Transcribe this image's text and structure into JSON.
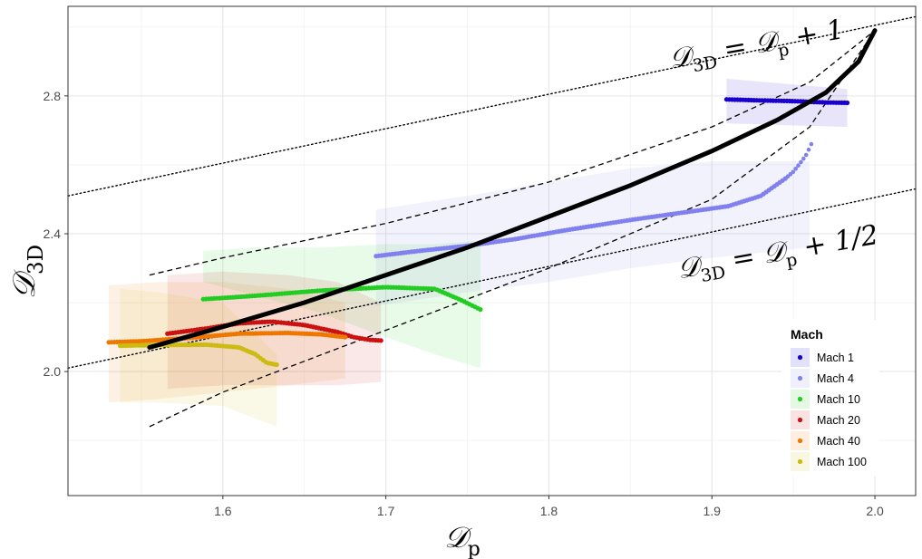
{
  "chart_data": {
    "type": "line",
    "xlabel": "𝒟",
    "xlabel_sub": "p",
    "ylabel": "𝒟",
    "ylabel_sub": "3D",
    "xlim": [
      1.505,
      2.025
    ],
    "ylim": [
      1.64,
      3.06
    ],
    "x_ticks": [
      1.6,
      1.7,
      1.8,
      1.9,
      2.0
    ],
    "x_tick_labels": [
      "1.6",
      "1.7",
      "1.8",
      "1.9",
      "2.0"
    ],
    "y_ticks": [
      2.0,
      2.4,
      2.8
    ],
    "y_tick_labels": [
      "2.0",
      "2.4",
      "2.8"
    ],
    "grid": true,
    "legend": {
      "title": "Mach",
      "position": "bottom-right",
      "entries": [
        "Mach 1",
        "Mach 4",
        "Mach 10",
        "Mach 20",
        "Mach 40",
        "Mach 100"
      ]
    },
    "annotations": [
      {
        "main": "𝒟",
        "sub1": "3D",
        "mid": " = 𝒟",
        "sub2": "p",
        "tail": " + 1",
        "x": 1.875,
        "y": 2.88,
        "angle": -10
      },
      {
        "main": "𝒟",
        "sub1": "3D",
        "mid": " = 𝒟",
        "sub2": "p",
        "tail": " + 1/2",
        "x": 1.88,
        "y": 2.27,
        "angle": -10
      }
    ],
    "reference_lines": [
      {
        "name": "dotted-line-plus-one",
        "style": "dotted",
        "x": [
          1.505,
          2.025
        ],
        "y": [
          2.51,
          3.03
        ]
      },
      {
        "name": "dotted-line-plus-half",
        "style": "dotted",
        "x": [
          1.505,
          2.025
        ],
        "y": [
          2.01,
          2.53
        ]
      },
      {
        "name": "dashed-bound-upper",
        "style": "dashed",
        "x": [
          1.555,
          1.6,
          1.7,
          1.8,
          1.9,
          1.96,
          2.0
        ],
        "y": [
          2.28,
          2.33,
          2.43,
          2.55,
          2.71,
          2.84,
          2.99
        ]
      },
      {
        "name": "dashed-bound-lower",
        "style": "dashed",
        "x": [
          1.555,
          1.6,
          1.7,
          1.8,
          1.9,
          1.96,
          2.0
        ],
        "y": [
          1.84,
          1.94,
          2.12,
          2.3,
          2.5,
          2.71,
          2.99
        ]
      },
      {
        "name": "fit-curve",
        "style": "solid",
        "x": [
          1.555,
          1.6,
          1.65,
          1.7,
          1.75,
          1.8,
          1.85,
          1.9,
          1.94,
          1.97,
          1.99,
          2.0
        ],
        "y": [
          2.07,
          2.13,
          2.2,
          2.28,
          2.36,
          2.45,
          2.54,
          2.64,
          2.73,
          2.81,
          2.9,
          2.99
        ]
      }
    ],
    "series": [
      {
        "name": "Mach 1",
        "color": "#1a00cc",
        "style": "line",
        "x": [
          1.909,
          1.93,
          1.95,
          1.97,
          1.983
        ],
        "y": [
          2.79,
          2.787,
          2.785,
          2.781,
          2.78
        ],
        "band": {
          "x": [
            1.909,
            1.983
          ],
          "upper": [
            2.85,
            2.82
          ],
          "lower": [
            2.72,
            2.71
          ]
        }
      },
      {
        "name": "Mach 4",
        "color": "#8080ee",
        "style": "line",
        "x": [
          1.694,
          1.72,
          1.75,
          1.78,
          1.81,
          1.85,
          1.88,
          1.91,
          1.93,
          1.945
        ],
        "y": [
          2.335,
          2.35,
          2.365,
          2.385,
          2.41,
          2.44,
          2.46,
          2.48,
          2.51,
          2.56
        ],
        "tail": {
          "x": [
            1.945,
            1.95,
            1.955,
            1.958,
            1.961
          ],
          "y": [
            2.56,
            2.58,
            2.61,
            2.63,
            2.66
          ]
        },
        "band": {
          "x": [
            1.694,
            1.75,
            1.8,
            1.85,
            1.9,
            1.96
          ],
          "upper": [
            2.47,
            2.51,
            2.55,
            2.59,
            2.61,
            2.61
          ],
          "lower": [
            2.19,
            2.23,
            2.26,
            2.3,
            2.33,
            2.36
          ]
        }
      },
      {
        "name": "Mach 10",
        "color": "#22cc22",
        "style": "line",
        "x": [
          1.588,
          1.62,
          1.66,
          1.7,
          1.73,
          1.745,
          1.758
        ],
        "y": [
          2.21,
          2.22,
          2.235,
          2.245,
          2.24,
          2.21,
          2.18
        ],
        "band": {
          "x": [
            1.588,
            1.62,
            1.66,
            1.7,
            1.73,
            1.758
          ],
          "upper": [
            2.35,
            2.36,
            2.36,
            2.37,
            2.37,
            2.38
          ],
          "lower": [
            2.26,
            2.22,
            2.17,
            2.1,
            2.05,
            2.01
          ]
        }
      },
      {
        "name": "Mach 20",
        "color": "#cc1111",
        "style": "line",
        "x": [
          1.566,
          1.59,
          1.61,
          1.63,
          1.65,
          1.67,
          1.68,
          1.69,
          1.697
        ],
        "y": [
          2.11,
          2.125,
          2.14,
          2.145,
          2.135,
          2.115,
          2.1,
          2.092,
          2.09
        ],
        "band": {
          "x": [
            1.566,
            1.6,
            1.64,
            1.67,
            1.697
          ],
          "upper": [
            2.28,
            2.29,
            2.28,
            2.26,
            2.2
          ],
          "lower": [
            1.95,
            1.96,
            1.96,
            1.96,
            1.97
          ]
        }
      },
      {
        "name": "Mach 40",
        "color": "#ee7700",
        "style": "line",
        "x": [
          1.53,
          1.55,
          1.58,
          1.61,
          1.64,
          1.66,
          1.675
        ],
        "y": [
          2.085,
          2.088,
          2.098,
          2.11,
          2.112,
          2.108,
          2.1
        ],
        "band": {
          "x": [
            1.53,
            1.56,
            1.6,
            1.64,
            1.675
          ],
          "upper": [
            2.25,
            2.26,
            2.26,
            2.24,
            2.2
          ],
          "lower": [
            1.91,
            1.92,
            1.94,
            1.96,
            1.98
          ]
        }
      },
      {
        "name": "Mach 100",
        "color": "#ccbb11",
        "style": "line",
        "x": [
          1.537,
          1.56,
          1.59,
          1.61,
          1.62,
          1.627,
          1.633
        ],
        "y": [
          2.075,
          2.077,
          2.078,
          2.07,
          2.05,
          2.025,
          2.02
        ],
        "band": {
          "x": [
            1.537,
            1.56,
            1.6,
            1.633
          ],
          "upper": [
            2.24,
            2.23,
            2.2,
            2.05
          ],
          "lower": [
            1.91,
            1.91,
            1.9,
            1.84
          ]
        }
      }
    ]
  }
}
